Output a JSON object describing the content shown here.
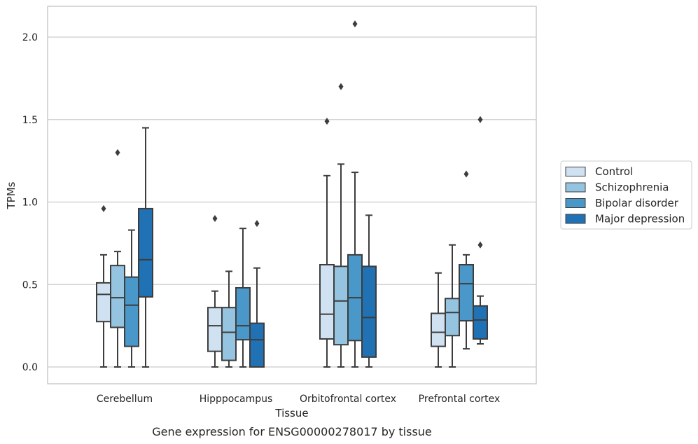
{
  "chart_data": {
    "type": "box",
    "caption": "Gene expression for ENSG00000278017 by tissue",
    "xlabel": "Tissue",
    "ylabel": "TPMs",
    "ylim": [
      -0.1,
      2.2
    ],
    "yticks": [
      0.0,
      0.5,
      1.0,
      1.5,
      2.0
    ],
    "ytick_labels": [
      "0.0",
      "0.5",
      "1.0",
      "1.5",
      "2.0"
    ],
    "grid": true,
    "legend_position": "right",
    "categories": [
      "Cerebellum",
      "Hipppocampus",
      "Orbitofrontal cortex",
      "Prefrontal cortex"
    ],
    "series": [
      {
        "name": "Control",
        "color": "#d0e1f2",
        "boxes": [
          {
            "whisker_low": 0.0,
            "q1": 0.275,
            "median": 0.44,
            "q3": 0.51,
            "whisker_high": 0.68,
            "outliers": [
              0.96
            ]
          },
          {
            "whisker_low": 0.0,
            "q1": 0.095,
            "median": 0.25,
            "q3": 0.36,
            "whisker_high": 0.46,
            "outliers": [
              0.9
            ]
          },
          {
            "whisker_low": 0.0,
            "q1": 0.17,
            "median": 0.32,
            "q3": 0.62,
            "whisker_high": 1.16,
            "outliers": [
              1.49
            ]
          },
          {
            "whisker_low": 0.0,
            "q1": 0.125,
            "median": 0.21,
            "q3": 0.325,
            "whisker_high": 0.57,
            "outliers": []
          }
        ]
      },
      {
        "name": "Schizophrenia",
        "color": "#94c4df",
        "boxes": [
          {
            "whisker_low": 0.0,
            "q1": 0.24,
            "median": 0.42,
            "q3": 0.615,
            "whisker_high": 0.7,
            "outliers": [
              1.3
            ]
          },
          {
            "whisker_low": 0.0,
            "q1": 0.04,
            "median": 0.21,
            "q3": 0.36,
            "whisker_high": 0.58,
            "outliers": []
          },
          {
            "whisker_low": 0.0,
            "q1": 0.135,
            "median": 0.4,
            "q3": 0.61,
            "whisker_high": 1.23,
            "outliers": [
              1.7
            ]
          },
          {
            "whisker_low": 0.0,
            "q1": 0.19,
            "median": 0.33,
            "q3": 0.415,
            "whisker_high": 0.74,
            "outliers": []
          }
        ]
      },
      {
        "name": "Bipolar disorder",
        "color": "#4a98c9",
        "boxes": [
          {
            "whisker_low": 0.0,
            "q1": 0.125,
            "median": 0.375,
            "q3": 0.545,
            "whisker_high": 0.83,
            "outliers": []
          },
          {
            "whisker_low": 0.0,
            "q1": 0.165,
            "median": 0.25,
            "q3": 0.48,
            "whisker_high": 0.84,
            "outliers": []
          },
          {
            "whisker_low": 0.0,
            "q1": 0.16,
            "median": 0.42,
            "q3": 0.68,
            "whisker_high": 1.18,
            "outliers": [
              2.08
            ]
          },
          {
            "whisker_low": 0.11,
            "q1": 0.28,
            "median": 0.505,
            "q3": 0.62,
            "whisker_high": 0.68,
            "outliers": [
              1.17
            ]
          }
        ]
      },
      {
        "name": "Major depression",
        "color": "#2171b5",
        "boxes": [
          {
            "whisker_low": 0.0,
            "q1": 0.425,
            "median": 0.65,
            "q3": 0.96,
            "whisker_high": 1.45,
            "outliers": []
          },
          {
            "whisker_low": 0.0,
            "q1": 0.0,
            "median": 0.165,
            "q3": 0.265,
            "whisker_high": 0.6,
            "outliers": [
              0.87
            ]
          },
          {
            "whisker_low": 0.0,
            "q1": 0.06,
            "median": 0.3,
            "q3": 0.61,
            "whisker_high": 0.92,
            "outliers": []
          },
          {
            "whisker_low": 0.14,
            "q1": 0.17,
            "median": 0.285,
            "q3": 0.37,
            "whisker_high": 0.43,
            "outliers": [
              0.74,
              1.5
            ]
          }
        ]
      }
    ]
  }
}
